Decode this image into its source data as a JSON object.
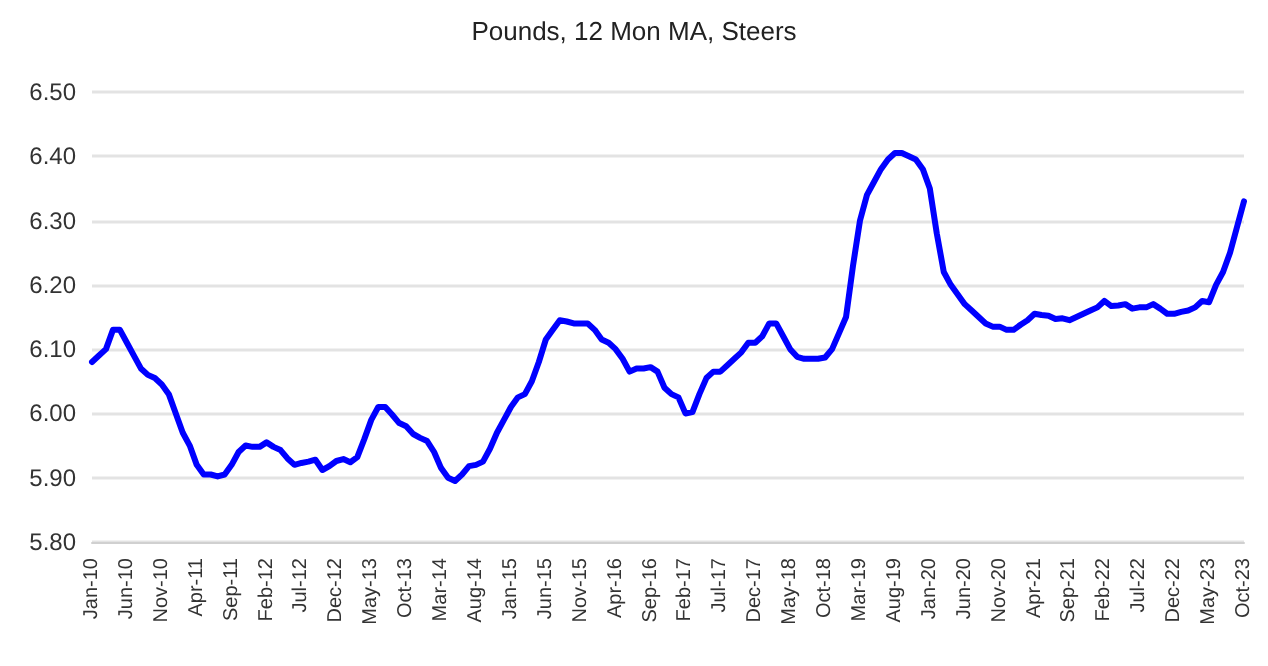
{
  "chart_data": {
    "type": "line",
    "title": "Pounds, 12 Mon MA, Steers",
    "categories": [
      "Jan-10",
      null,
      null,
      null,
      null,
      "Jun-10",
      null,
      null,
      null,
      null,
      "Nov-10",
      null,
      null,
      null,
      null,
      "Apr-11",
      null,
      null,
      null,
      null,
      "Sep-11",
      null,
      null,
      null,
      null,
      "Feb-12",
      null,
      null,
      null,
      null,
      "Jul-12",
      null,
      null,
      null,
      null,
      "Dec-12",
      null,
      null,
      null,
      null,
      "May-13",
      null,
      null,
      null,
      null,
      "Oct-13",
      null,
      null,
      null,
      null,
      "Mar-14",
      null,
      null,
      null,
      null,
      "Aug-14",
      null,
      null,
      null,
      null,
      "Jan-15",
      null,
      null,
      null,
      null,
      "Jun-15",
      null,
      null,
      null,
      null,
      "Nov-15",
      null,
      null,
      null,
      null,
      "Apr-16",
      null,
      null,
      null,
      null,
      "Sep-16",
      null,
      null,
      null,
      null,
      "Feb-17",
      null,
      null,
      null,
      null,
      "Jul-17",
      null,
      null,
      null,
      null,
      "Dec-17",
      null,
      null,
      null,
      null,
      "May-18",
      null,
      null,
      null,
      null,
      "Oct-18",
      null,
      null,
      null,
      null,
      "Mar-19",
      null,
      null,
      null,
      null,
      "Aug-19",
      null,
      null,
      null,
      null,
      "Jan-20",
      null,
      null,
      null,
      null,
      "Jun-20",
      null,
      null,
      null,
      null,
      "Nov-20",
      null,
      null,
      null,
      null,
      "Apr-21",
      null,
      null,
      null,
      null,
      "Sep-21",
      null,
      null,
      null,
      null,
      "Feb-22",
      null,
      null,
      null,
      null,
      "Jul-22",
      null,
      null,
      null,
      null,
      "Dec-22",
      null,
      null,
      null,
      null,
      "May-23",
      null,
      null,
      null,
      null,
      "Oct-23"
    ],
    "series": [
      {
        "color": "#0000ff",
        "values": [
          6.08,
          6.09,
          6.1,
          6.13,
          6.13,
          6.11,
          6.09,
          6.07,
          6.06,
          6.055,
          6.045,
          6.03,
          6.0,
          5.97,
          5.95,
          5.92,
          5.905,
          5.905,
          5.902,
          5.905,
          5.92,
          5.94,
          5.95,
          5.948,
          5.948,
          5.955,
          5.948,
          5.943,
          5.93,
          5.92,
          5.923,
          5.925,
          5.928,
          5.912,
          5.918,
          5.926,
          5.929,
          5.924,
          5.932,
          5.96,
          5.99,
          6.01,
          6.01,
          5.998,
          5.985,
          5.98,
          5.968,
          5.962,
          5.957,
          5.94,
          5.915,
          5.9,
          5.895,
          5.905,
          5.918,
          5.92,
          5.925,
          5.945,
          5.97,
          5.99,
          6.01,
          6.025,
          6.03,
          6.05,
          6.08,
          6.115,
          6.13,
          6.145,
          6.143,
          6.14,
          6.14,
          6.14,
          6.13,
          6.115,
          6.11,
          6.1,
          6.085,
          6.065,
          6.07,
          6.07,
          6.072,
          6.065,
          6.04,
          6.03,
          6.025,
          6.0,
          6.002,
          6.03,
          6.055,
          6.065,
          6.065,
          6.075,
          6.085,
          6.095,
          6.11,
          6.11,
          6.12,
          6.14,
          6.14,
          6.12,
          6.1,
          6.088,
          6.085,
          6.085,
          6.085,
          6.087,
          6.1,
          6.125,
          6.15,
          6.23,
          6.3,
          6.34,
          6.36,
          6.38,
          6.395,
          6.405,
          6.405,
          6.4,
          6.395,
          6.38,
          6.35,
          6.28,
          6.22,
          6.2,
          6.185,
          6.17,
          6.16,
          6.15,
          6.14,
          6.135,
          6.135,
          6.13,
          6.13,
          6.138,
          6.145,
          6.155,
          6.153,
          6.152,
          6.147,
          6.148,
          6.145,
          6.15,
          6.155,
          6.16,
          6.165,
          6.175,
          6.167,
          6.168,
          6.17,
          6.163,
          6.165,
          6.165,
          6.17,
          6.163,
          6.155,
          6.155,
          6.158,
          6.16,
          6.165,
          6.175,
          6.173,
          6.2,
          6.22,
          6.25,
          6.29,
          6.33
        ]
      }
    ],
    "ylim": [
      5.8,
      6.5
    ],
    "yticks": [
      {
        "value": 5.8,
        "label": "5.80"
      },
      {
        "value": 5.9,
        "label": "5.90"
      },
      {
        "value": 6.0,
        "label": "6.00"
      },
      {
        "value": 6.1,
        "label": "6.10"
      },
      {
        "value": 6.2,
        "label": "6.20"
      },
      {
        "value": 6.3,
        "label": "6.30"
      },
      {
        "value": 6.4,
        "label": "6.40"
      },
      {
        "value": 6.5,
        "label": "6.50"
      }
    ],
    "grid": "y",
    "marker": "none",
    "line_style": "solid"
  }
}
